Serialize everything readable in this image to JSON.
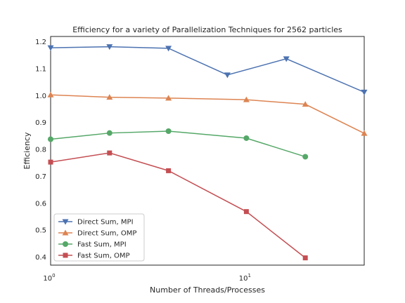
{
  "chart_data": {
    "type": "line",
    "title": "Efficiency for a variety of Parallelization Techniques for 2562 particles",
    "xlabel": "Number of Threads/Processes",
    "ylabel": "Efficiency",
    "xscale": "log",
    "xlim": [
      1,
      40
    ],
    "ylim": [
      0.37,
      1.22
    ],
    "x_ticks": [
      {
        "value": 1,
        "label": "10",
        "exp": "0"
      },
      {
        "value": 10,
        "label": "10",
        "exp": "1"
      }
    ],
    "y_ticks": [
      0.4,
      0.5,
      0.6,
      0.7,
      0.8,
      0.9,
      1.0,
      1.1,
      1.2
    ],
    "y_tick_labels": [
      "0.4",
      "0.5",
      "0.6",
      "0.7",
      "0.8",
      "0.9",
      "1.0",
      "1.1",
      "1.2"
    ],
    "grid": false,
    "legend_position": "lower-left",
    "series": [
      {
        "name": "Direct Sum, MPI",
        "color": "#4c72b0",
        "marker": "triangle-down",
        "x": [
          1,
          2,
          4,
          8,
          16,
          40
        ],
        "y": [
          1.178,
          1.182,
          1.176,
          1.077,
          1.137,
          1.013
        ]
      },
      {
        "name": "Direct Sum, OMP",
        "color": "#dd8452",
        "marker": "triangle-up",
        "x": [
          1,
          2,
          4,
          10,
          20,
          40
        ],
        "y": [
          1.003,
          0.994,
          0.991,
          0.985,
          0.968,
          0.86
        ]
      },
      {
        "name": "Fast Sum, MPI",
        "color": "#55a868",
        "marker": "circle",
        "x": [
          1,
          2,
          4,
          10,
          20
        ],
        "y": [
          0.838,
          0.861,
          0.868,
          0.842,
          0.773
        ]
      },
      {
        "name": "Fast Sum, OMP",
        "color": "#c44e52",
        "marker": "square",
        "x": [
          1,
          2,
          4,
          10,
          20
        ],
        "y": [
          0.753,
          0.787,
          0.721,
          0.569,
          0.397
        ]
      }
    ]
  }
}
